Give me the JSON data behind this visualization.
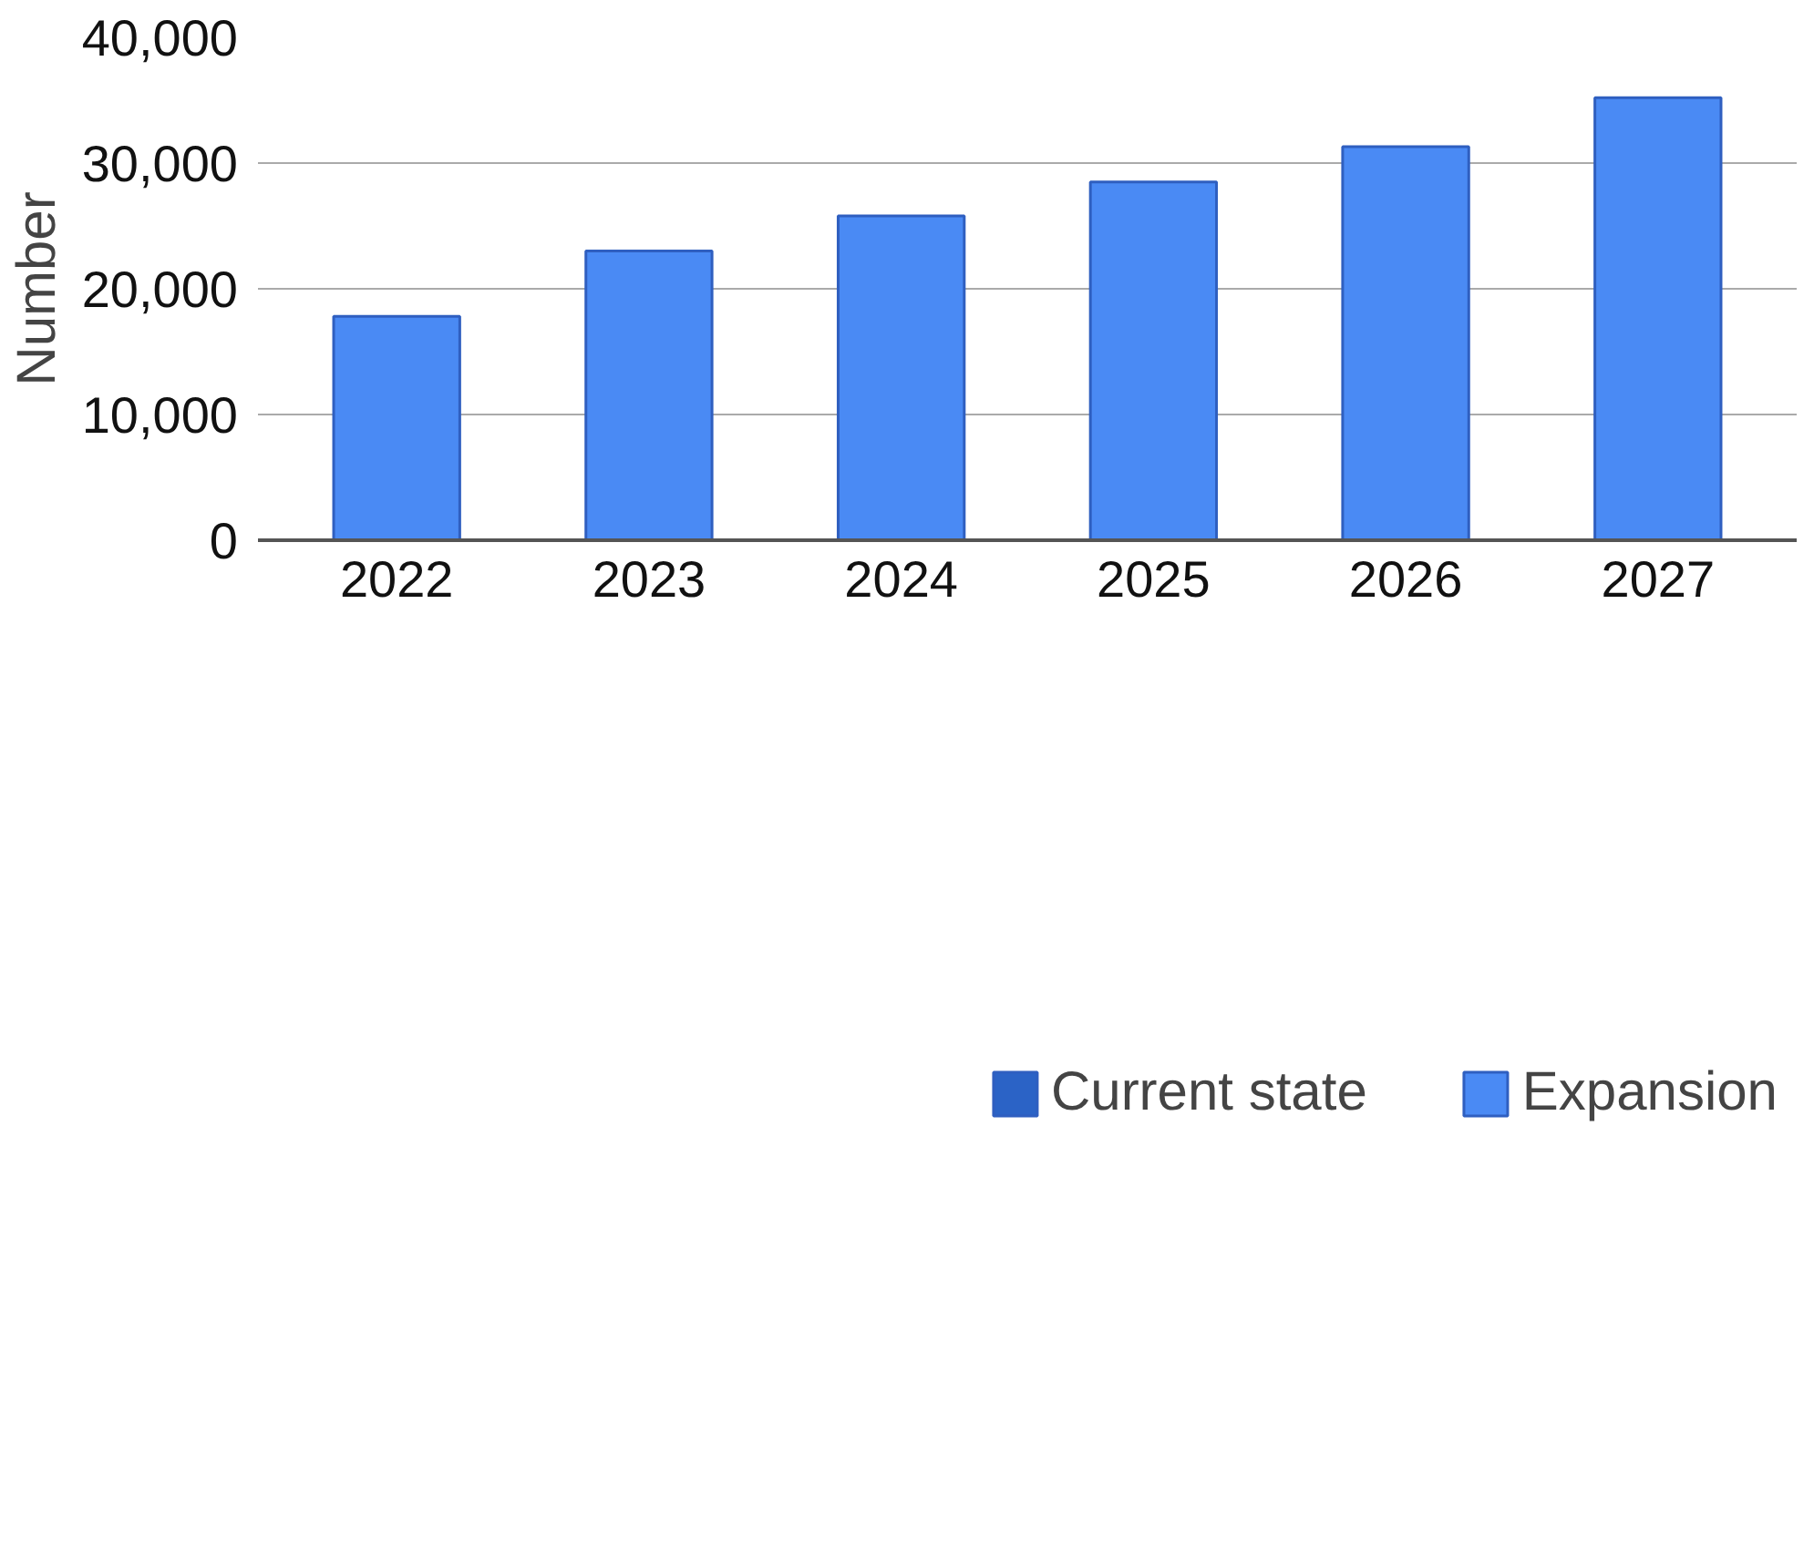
{
  "chart_data": {
    "type": "bar",
    "ylabel": "Number",
    "categories": [
      "2022",
      "2023",
      "2024",
      "2025",
      "2026",
      "2027"
    ],
    "stacked": true,
    "series": [
      {
        "name": "Current state",
        "color": "#2b63c6",
        "values": [
          null,
          null,
          null,
          null,
          null,
          null
        ]
      },
      {
        "name": "Expansion",
        "color": "#4a8af4",
        "values": [
          17800,
          23000,
          25800,
          28500,
          31300,
          35200
        ]
      }
    ],
    "ylim": [
      0,
      40000
    ],
    "yticks": [
      {
        "value": 0,
        "label": "0"
      },
      {
        "value": 10000,
        "label": "10,000"
      },
      {
        "value": 20000,
        "label": "20,000"
      },
      {
        "value": 30000,
        "label": "30,000"
      },
      {
        "value": 40000,
        "label": "40,000"
      }
    ],
    "grid": "y",
    "legend": "bottom"
  }
}
